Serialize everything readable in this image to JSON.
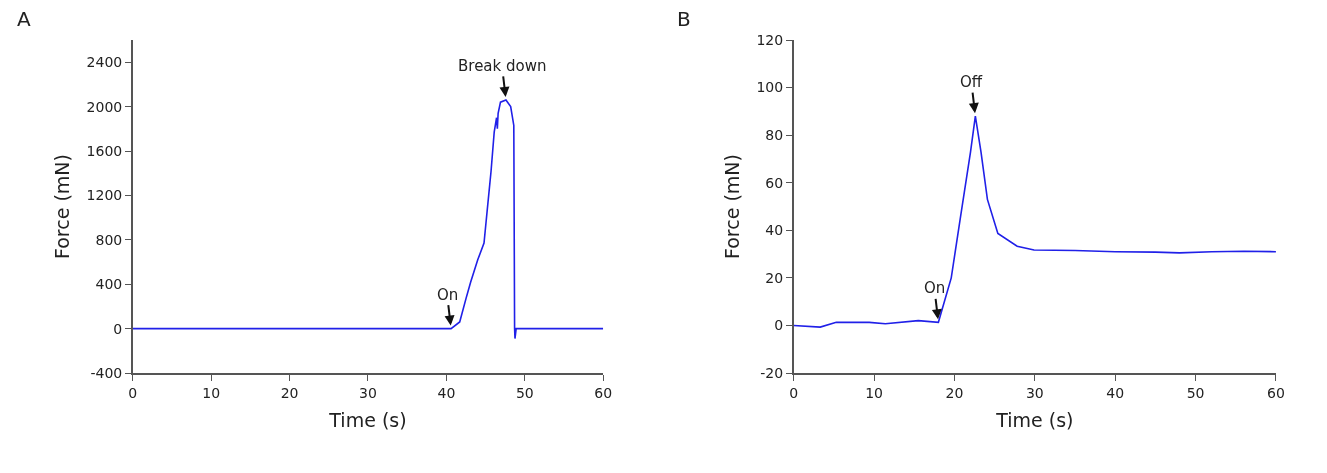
{
  "chart_data": [
    {
      "type": "line",
      "title": "A",
      "xlabel": "Time (s)",
      "ylabel": "Force (mN)",
      "x": [
        0,
        10,
        20,
        30,
        40,
        40.6,
        41.7,
        42.5,
        43.1,
        44.0,
        44.8,
        45.2,
        45.7,
        46.1,
        46.4,
        46.5,
        46.6,
        46.9,
        47.6,
        48.2,
        48.6,
        48.7,
        48.75,
        48.9,
        50,
        60
      ],
      "series": [
        {
          "color": "#2020e8",
          "values": [
            0,
            0,
            0,
            0,
            0,
            0,
            60,
            270,
            420,
            620,
            770,
            1060,
            1420,
            1770,
            1900,
            1800,
            1940,
            2040,
            2060,
            2000,
            1830,
            0,
            -90,
            0,
            0,
            0
          ]
        }
      ],
      "xlim": [
        0,
        60
      ],
      "xticks": [
        0,
        10,
        20,
        30,
        40,
        50,
        60
      ],
      "ylim": [
        -400,
        2600
      ],
      "yticks": [
        -400,
        0,
        400,
        800,
        1200,
        1600,
        2000,
        2400
      ],
      "annotations": [
        {
          "text": "On",
          "x": 40.6,
          "y": 0
        },
        {
          "text": "Break down",
          "x": 47.6,
          "y": 2060
        }
      ],
      "line_style": "solid",
      "marker": "none"
    },
    {
      "type": "line",
      "title": "B",
      "xlabel": "Time (s)",
      "ylabel": "Force (mN)",
      "x": [
        0,
        3.3,
        5.3,
        9.4,
        11.4,
        15.5,
        18.0,
        19.6,
        20.8,
        22.0,
        22.6,
        23.3,
        24.1,
        25.4,
        27.8,
        29.9,
        35,
        40,
        45,
        48,
        52,
        56,
        60
      ],
      "series": [
        {
          "color": "#2020e8",
          "values": [
            0,
            -0.7,
            1.3,
            1.3,
            0.7,
            2,
            1.3,
            20,
            46.7,
            73,
            88,
            73,
            53,
            38.7,
            33.3,
            31.7,
            31.5,
            31,
            30.8,
            30.5,
            31,
            31.2,
            31
          ]
        }
      ],
      "xlim": [
        0,
        60
      ],
      "xticks": [
        0,
        10,
        20,
        30,
        40,
        50,
        60
      ],
      "ylim": [
        -20,
        120
      ],
      "yticks": [
        -20,
        0,
        20,
        40,
        60,
        80,
        100,
        120
      ],
      "annotations": [
        {
          "text": "On",
          "x": 18.0,
          "y": 1.3
        },
        {
          "text": "Off",
          "x": 22.6,
          "y": 88
        }
      ],
      "line_style": "solid",
      "marker": "none"
    }
  ]
}
